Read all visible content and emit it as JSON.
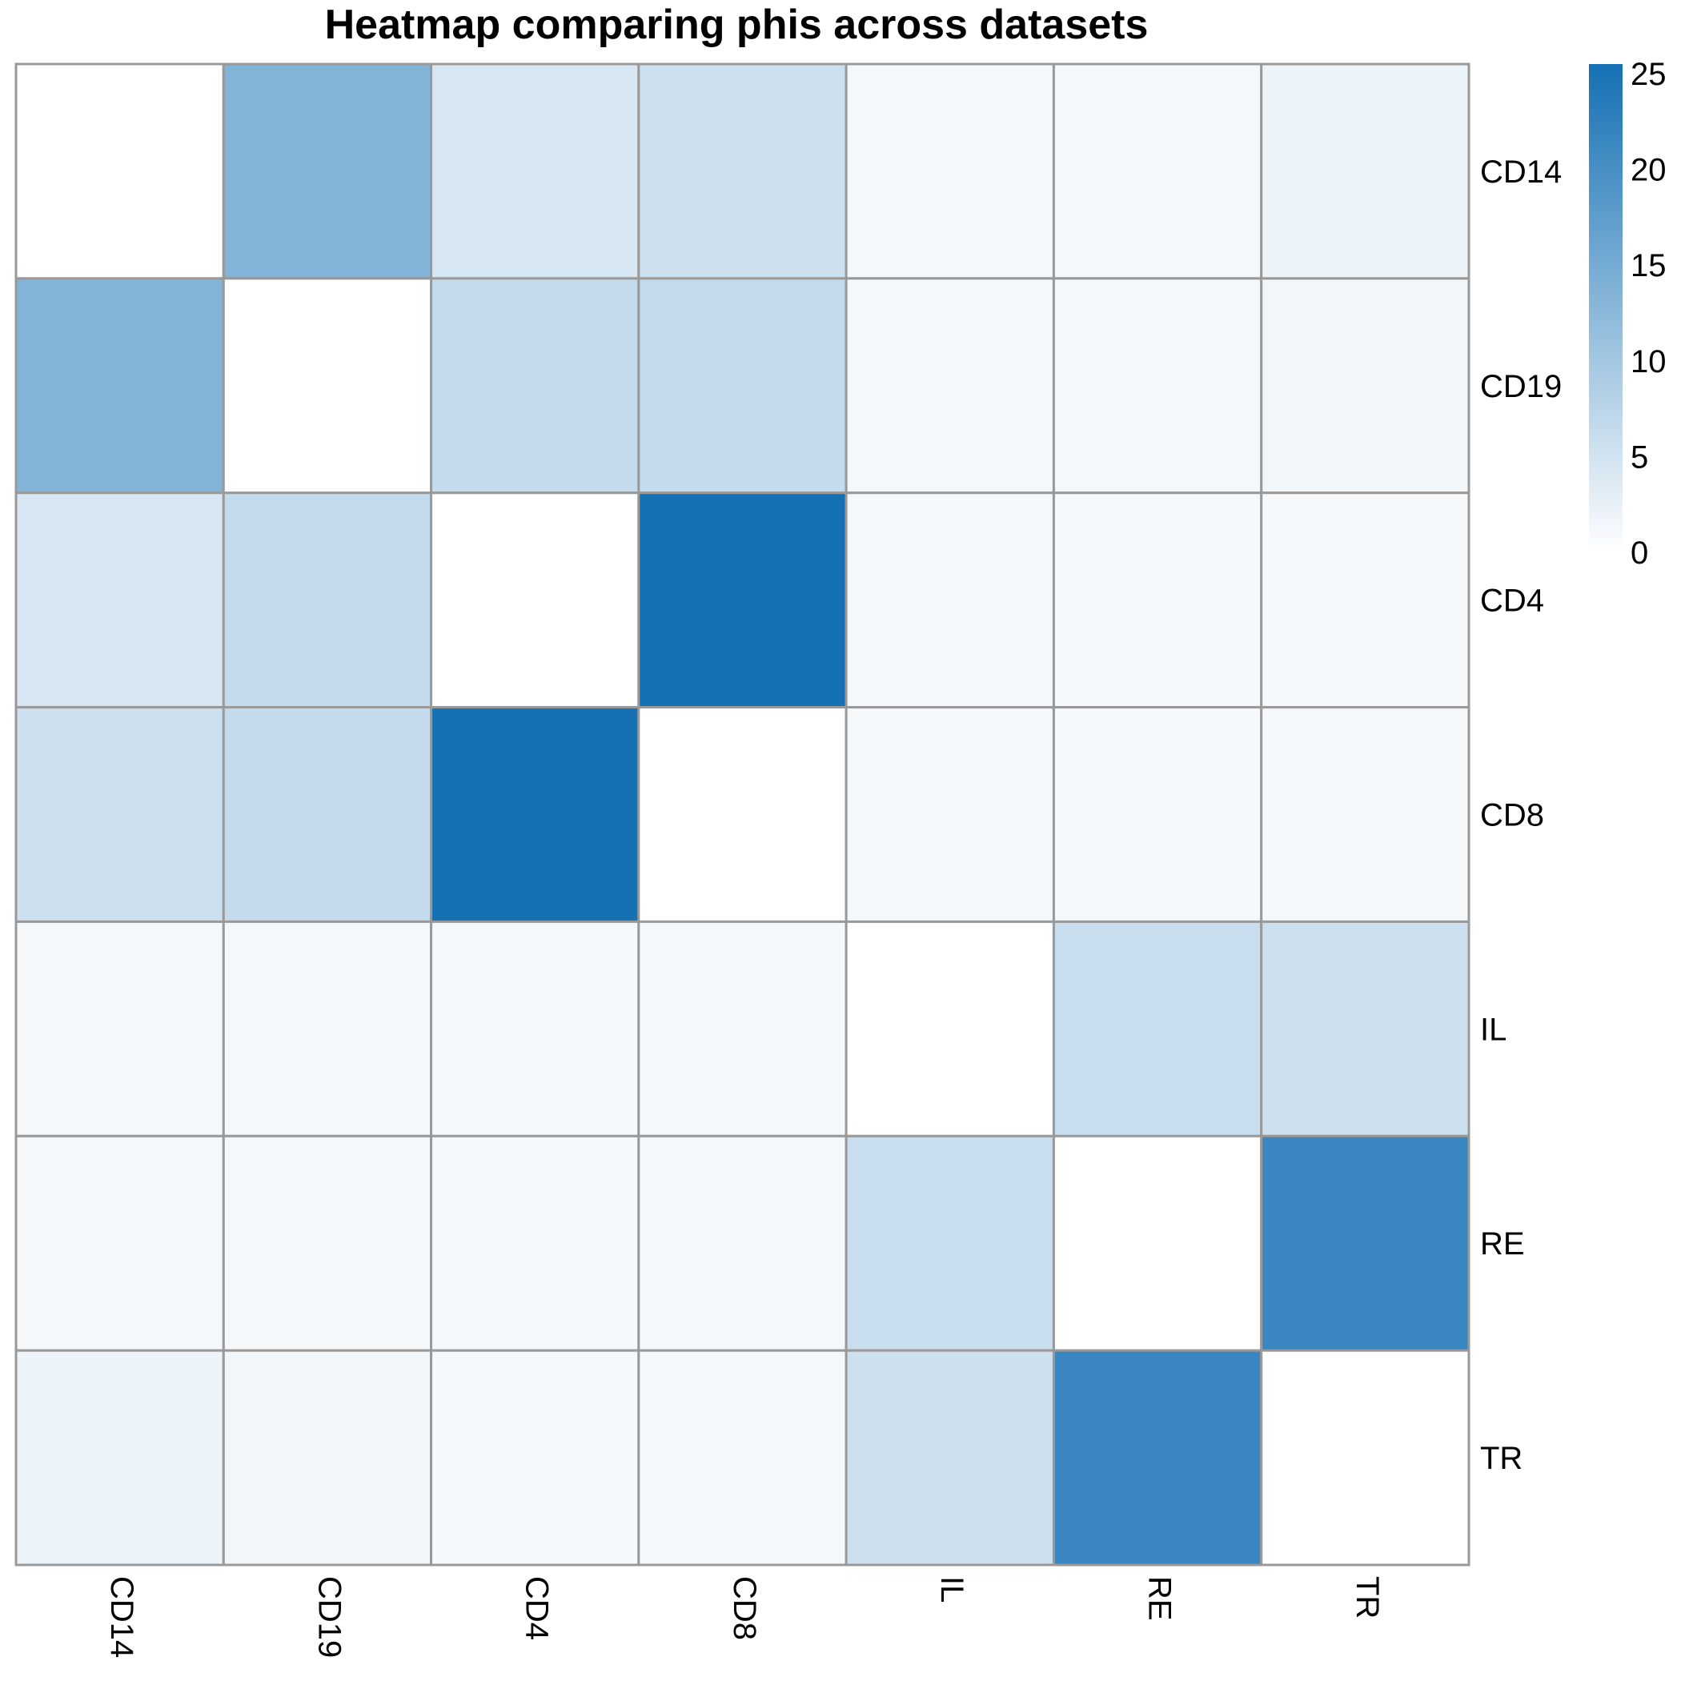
{
  "chart_data": {
    "type": "heatmap",
    "title": "Heatmap comparing phis across datasets",
    "rows": [
      "CD14",
      "CD19",
      "CD4",
      "CD8",
      "IL",
      "RE",
      "TR"
    ],
    "columns": [
      "CD14",
      "CD19",
      "CD4",
      "CD8",
      "IL",
      "RE",
      "TR"
    ],
    "values": [
      [
        0,
        13.5,
        4.5,
        5.5,
        1.2,
        1.2,
        2.0
      ],
      [
        13.5,
        0,
        6.5,
        6.5,
        1.2,
        1.2,
        1.6
      ],
      [
        4.5,
        6.5,
        0,
        25.5,
        1.2,
        1.0,
        1.0
      ],
      [
        5.5,
        6.5,
        25.5,
        0,
        1.2,
        1.0,
        1.2
      ],
      [
        1.2,
        1.2,
        1.0,
        1.2,
        0,
        6.0,
        5.5
      ],
      [
        1.2,
        1.2,
        1.0,
        1.2,
        6.0,
        0,
        21.5
      ],
      [
        2.0,
        1.6,
        1.0,
        1.2,
        5.5,
        21.5,
        0
      ]
    ],
    "legend": {
      "ticks": [
        0,
        5,
        10,
        15,
        20,
        25
      ],
      "range": [
        0,
        25.5
      ],
      "color_low": "#ffffff",
      "color_high": "#1570b4"
    },
    "grid_color": "#999999",
    "legend_position": "top-right"
  }
}
